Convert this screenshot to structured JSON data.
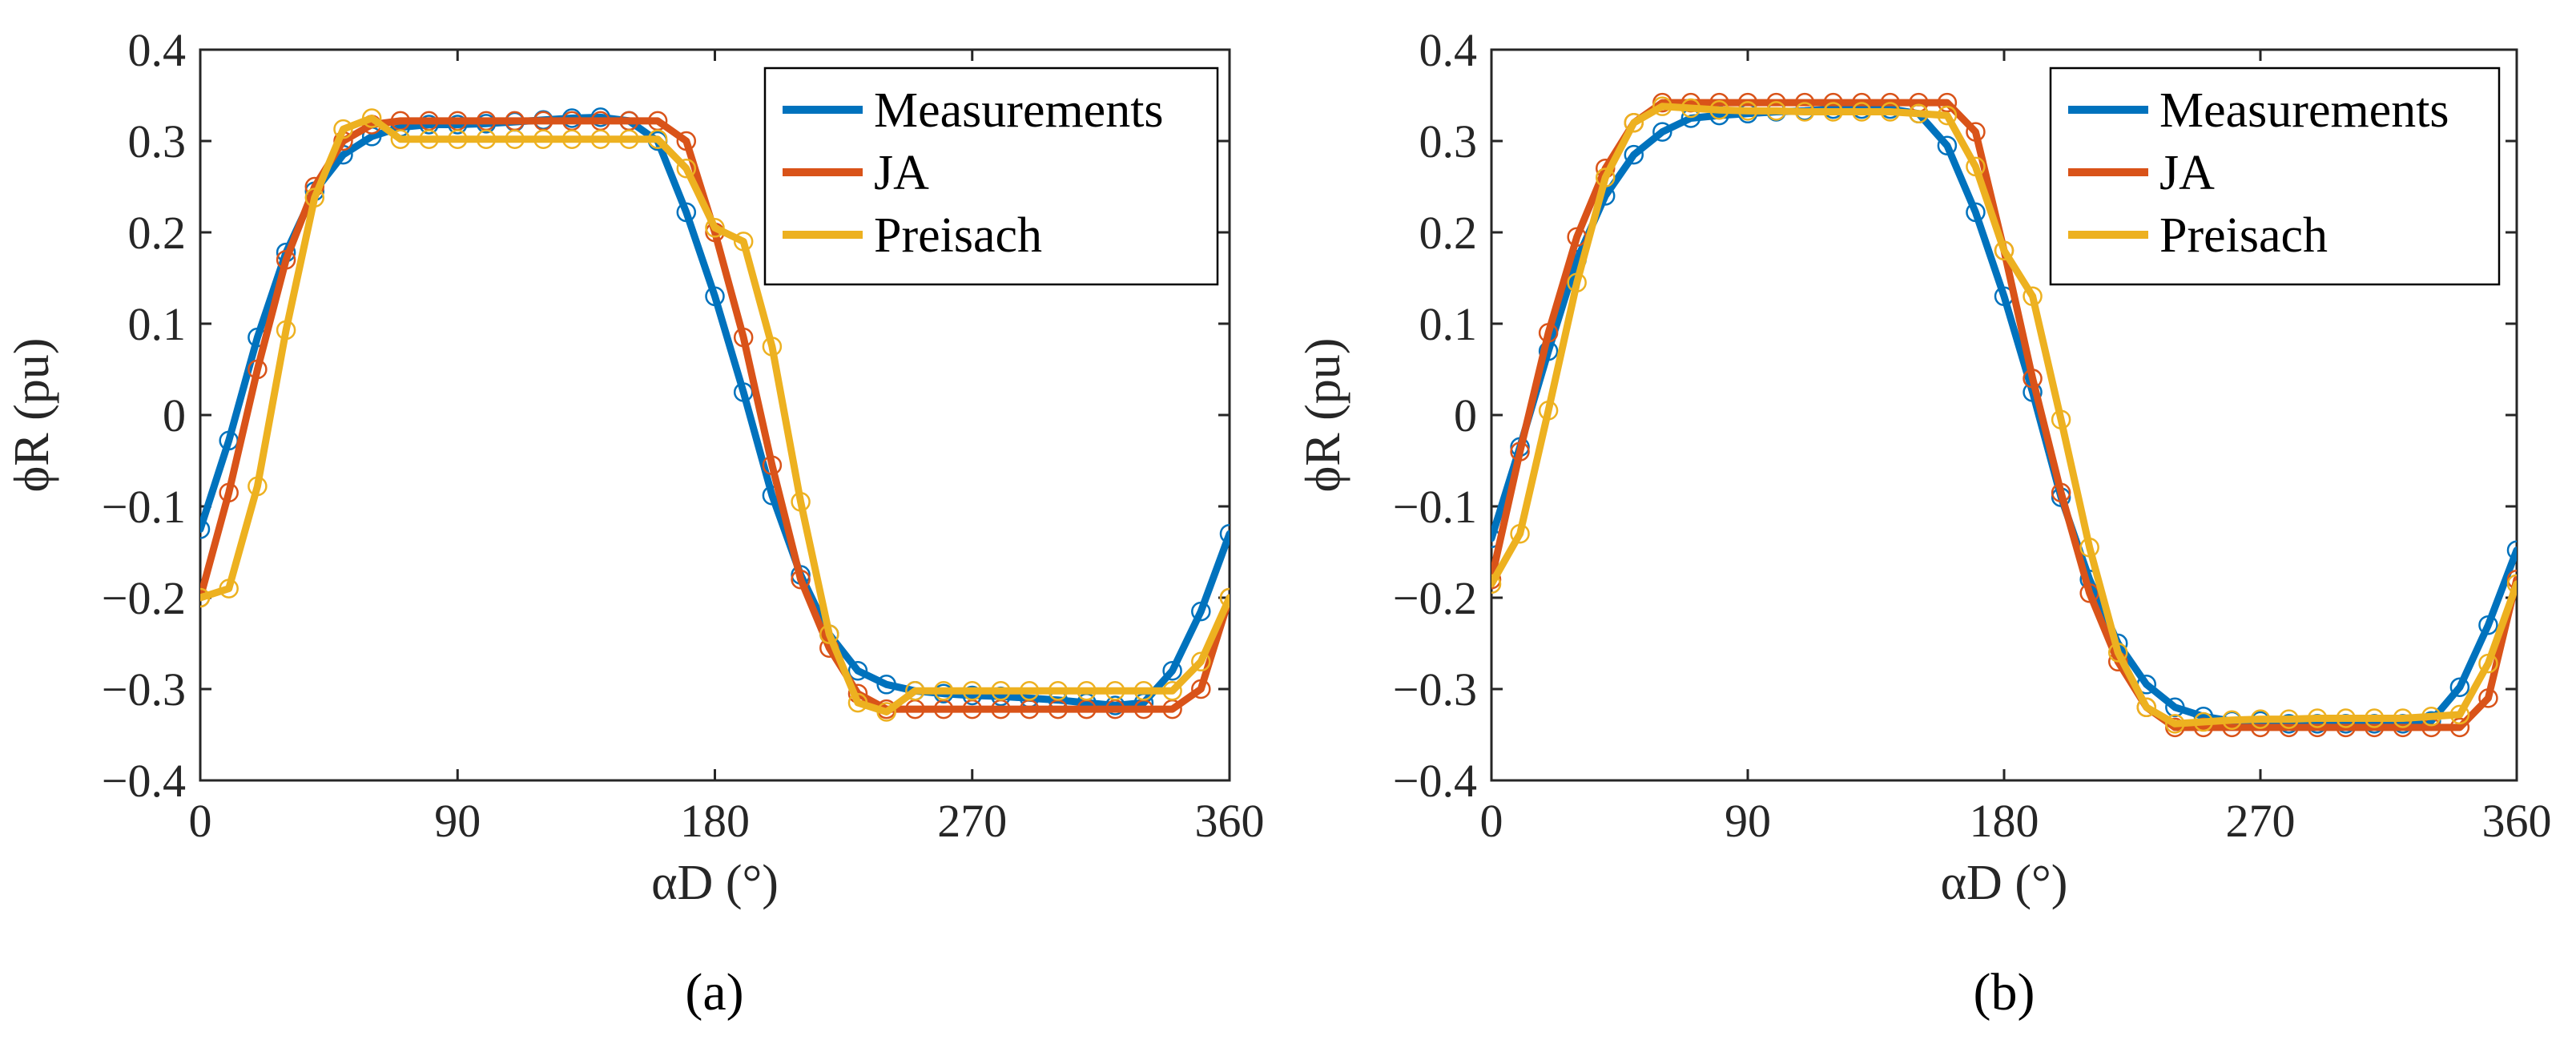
{
  "colors": {
    "measurements": "#0072BD",
    "ja": "#D95319",
    "preisach": "#EDB120",
    "axis": "#262626"
  },
  "chart_data": [
    {
      "type": "line",
      "caption": "(a)",
      "xlabel": "αD (°)",
      "ylabel": "ϕR (pu)",
      "xlim": [
        0,
        360
      ],
      "ylim": [
        -0.4,
        0.4
      ],
      "xticks": [
        0,
        90,
        180,
        270,
        360
      ],
      "yticks": [
        0.4,
        0.3,
        0.2,
        0.1,
        0,
        -0.1,
        -0.2,
        -0.3,
        -0.4
      ],
      "ytick_labels": [
        "0.4",
        "0.3",
        "0.2",
        "0.1",
        "0",
        "−0.1",
        "−0.2",
        "−0.3",
        "−0.4"
      ],
      "grid": false,
      "legend_position": "top-right",
      "x": [
        0,
        10,
        20,
        30,
        40,
        50,
        60,
        70,
        80,
        90,
        100,
        110,
        120,
        130,
        140,
        150,
        160,
        170,
        180,
        190,
        200,
        210,
        220,
        230,
        240,
        250,
        260,
        270,
        280,
        290,
        300,
        310,
        320,
        330,
        340,
        350,
        360
      ],
      "series": [
        {
          "name": "Measurements",
          "color_key": "measurements",
          "values": [
            -0.125,
            -0.028,
            0.085,
            0.178,
            0.245,
            0.285,
            0.305,
            0.315,
            0.318,
            0.318,
            0.319,
            0.321,
            0.323,
            0.325,
            0.326,
            0.322,
            0.3,
            0.222,
            0.13,
            0.025,
            -0.088,
            -0.175,
            -0.24,
            -0.28,
            -0.295,
            -0.302,
            -0.305,
            -0.307,
            -0.308,
            -0.31,
            -0.312,
            -0.315,
            -0.318,
            -0.315,
            -0.28,
            -0.215,
            -0.13
          ]
        },
        {
          "name": "JA",
          "color_key": "ja",
          "values": [
            -0.2,
            -0.085,
            0.05,
            0.17,
            0.25,
            0.3,
            0.318,
            0.322,
            0.322,
            0.322,
            0.322,
            0.322,
            0.322,
            0.322,
            0.322,
            0.322,
            0.322,
            0.3,
            0.2,
            0.085,
            -0.055,
            -0.18,
            -0.255,
            -0.305,
            -0.322,
            -0.322,
            -0.322,
            -0.322,
            -0.322,
            -0.322,
            -0.322,
            -0.322,
            -0.322,
            -0.322,
            -0.322,
            -0.3,
            -0.2
          ]
        },
        {
          "name": "Preisach",
          "color_key": "preisach",
          "values": [
            -0.2,
            -0.19,
            -0.078,
            0.093,
            0.238,
            0.313,
            0.325,
            0.302,
            0.302,
            0.302,
            0.302,
            0.302,
            0.302,
            0.302,
            0.302,
            0.302,
            0.302,
            0.27,
            0.205,
            0.19,
            0.075,
            -0.095,
            -0.24,
            -0.315,
            -0.325,
            -0.302,
            -0.302,
            -0.302,
            -0.302,
            -0.302,
            -0.302,
            -0.302,
            -0.302,
            -0.302,
            -0.302,
            -0.27,
            -0.2
          ]
        }
      ]
    },
    {
      "type": "line",
      "caption": "(b)",
      "xlabel": "αD (°)",
      "ylabel": "ϕR (pu)",
      "xlim": [
        0,
        360
      ],
      "ylim": [
        -0.4,
        0.4
      ],
      "xticks": [
        0,
        90,
        180,
        270,
        360
      ],
      "yticks": [
        0.4,
        0.3,
        0.2,
        0.1,
        0,
        -0.1,
        -0.2,
        -0.3,
        -0.4
      ],
      "ytick_labels": [
        "0.4",
        "0.3",
        "0.2",
        "0.1",
        "0",
        "−0.1",
        "−0.2",
        "−0.3",
        "−0.4"
      ],
      "grid": false,
      "legend_position": "top-right",
      "x": [
        0,
        10,
        20,
        30,
        40,
        50,
        60,
        70,
        80,
        90,
        100,
        110,
        120,
        130,
        140,
        150,
        160,
        170,
        180,
        190,
        200,
        210,
        220,
        230,
        240,
        250,
        260,
        270,
        280,
        290,
        300,
        310,
        320,
        330,
        340,
        350,
        360
      ],
      "series": [
        {
          "name": "Measurements",
          "color_key": "measurements",
          "values": [
            -0.135,
            -0.035,
            0.07,
            0.17,
            0.24,
            0.285,
            0.31,
            0.325,
            0.328,
            0.33,
            0.332,
            0.333,
            0.335,
            0.335,
            0.335,
            0.33,
            0.295,
            0.222,
            0.13,
            0.025,
            -0.09,
            -0.18,
            -0.25,
            -0.295,
            -0.32,
            -0.33,
            -0.335,
            -0.335,
            -0.338,
            -0.338,
            -0.338,
            -0.338,
            -0.338,
            -0.335,
            -0.298,
            -0.23,
            -0.148
          ]
        },
        {
          "name": "JA",
          "color_key": "ja",
          "values": [
            -0.18,
            -0.04,
            0.09,
            0.195,
            0.27,
            0.32,
            0.342,
            0.342,
            0.342,
            0.342,
            0.342,
            0.342,
            0.342,
            0.342,
            0.342,
            0.342,
            0.342,
            0.31,
            0.18,
            0.04,
            -0.085,
            -0.195,
            -0.27,
            -0.32,
            -0.342,
            -0.342,
            -0.342,
            -0.342,
            -0.342,
            -0.342,
            -0.342,
            -0.342,
            -0.342,
            -0.342,
            -0.342,
            -0.31,
            -0.18
          ]
        },
        {
          "name": "Preisach",
          "color_key": "preisach",
          "values": [
            -0.185,
            -0.13,
            0.005,
            0.145,
            0.26,
            0.32,
            0.338,
            0.336,
            0.334,
            0.333,
            0.333,
            0.332,
            0.332,
            0.332,
            0.332,
            0.33,
            0.328,
            0.272,
            0.18,
            0.13,
            -0.005,
            -0.145,
            -0.26,
            -0.32,
            -0.338,
            -0.336,
            -0.334,
            -0.333,
            -0.333,
            -0.332,
            -0.332,
            -0.332,
            -0.332,
            -0.33,
            -0.328,
            -0.272,
            -0.185
          ]
        }
      ]
    }
  ]
}
